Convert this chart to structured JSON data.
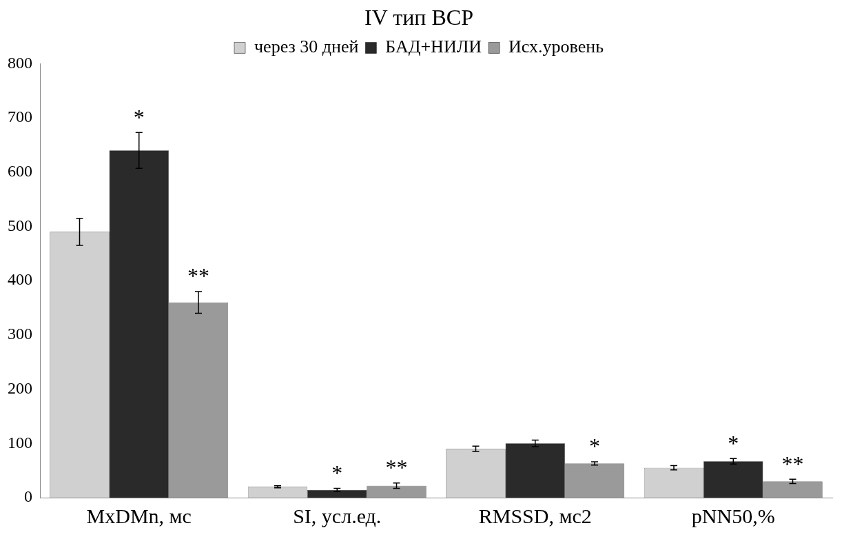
{
  "chart_data": {
    "type": "bar",
    "title": "IV тип ВСР",
    "categories": [
      "MxDMn, мс",
      "SI, усл.ед.",
      "RMSSD, мс2",
      "pNN50,%"
    ],
    "series": [
      {
        "name": "через 30 дней",
        "color": "#d0d0d0",
        "values": [
          490,
          20,
          90,
          55
        ],
        "errors": [
          25,
          2,
          5,
          4
        ],
        "value_labels": [
          null,
          null,
          null,
          null
        ]
      },
      {
        "name": "БАД+НИЛИ",
        "color": "#2a2a2a",
        "values": [
          640,
          14,
          100,
          67
        ],
        "errors": [
          33,
          3,
          6,
          5
        ],
        "value_labels": [
          "*",
          "*",
          null,
          "*"
        ]
      },
      {
        "name": "Исх.уровень",
        "color": "#9a9a9a",
        "values": [
          360,
          22,
          63,
          30
        ],
        "errors": [
          20,
          5,
          3,
          4
        ],
        "value_labels": [
          "**",
          "**",
          "*",
          "**"
        ]
      }
    ],
    "ylim": [
      0,
      800
    ],
    "yticks": [
      0,
      100,
      200,
      300,
      400,
      500,
      600,
      700,
      800
    ],
    "grid": false,
    "legend": "top"
  }
}
